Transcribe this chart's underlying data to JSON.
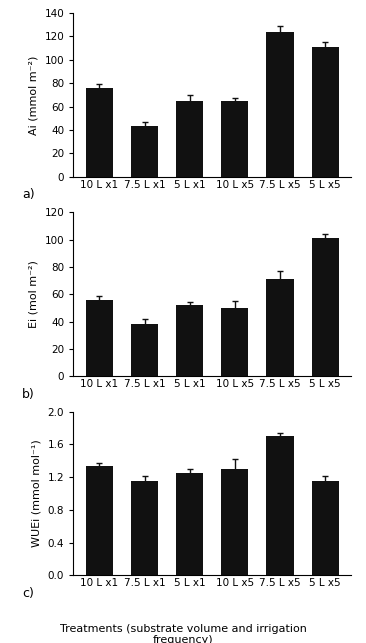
{
  "categories": [
    "10 L x1",
    "7.5 L x1",
    "5 L x1",
    "10 L x5",
    "7.5 L x5",
    "5 L x5"
  ],
  "Ai_values": [
    76,
    43,
    65,
    65,
    124,
    111
  ],
  "Ai_errors": [
    3,
    4,
    5,
    2,
    5,
    4
  ],
  "Ai_ylabel": "Ai (mmol m⁻²)",
  "Ai_ylim": [
    0,
    140
  ],
  "Ai_yticks": [
    0,
    20,
    40,
    60,
    80,
    100,
    120,
    140
  ],
  "Ai_label": "a)",
  "Ei_values": [
    56,
    38,
    52,
    50,
    71,
    101
  ],
  "Ei_errors": [
    3,
    4,
    2,
    5,
    6,
    3
  ],
  "Ei_ylabel": "Ei (mol m⁻²)",
  "Ei_ylim": [
    0,
    120
  ],
  "Ei_yticks": [
    0,
    20,
    40,
    60,
    80,
    100,
    120
  ],
  "Ei_label": "b)",
  "WUEi_values": [
    1.33,
    1.15,
    1.25,
    1.3,
    1.7,
    1.15
  ],
  "WUEi_errors": [
    0.04,
    0.06,
    0.05,
    0.12,
    0.04,
    0.06
  ],
  "WUEi_ylabel": "WUEi (mmol mol⁻¹)",
  "WUEi_ylim": [
    0.0,
    2.0
  ],
  "WUEi_yticks": [
    0.0,
    0.4,
    0.8,
    1.2,
    1.6,
    2.0
  ],
  "WUEi_label": "c)",
  "xlabel": "Treatments (substrate volume and irrigation\nfrequency)",
  "bar_color": "#111111",
  "bar_width": 0.6,
  "capsize": 2.5,
  "ecolor": "#111111",
  "elinewidth": 1.0
}
